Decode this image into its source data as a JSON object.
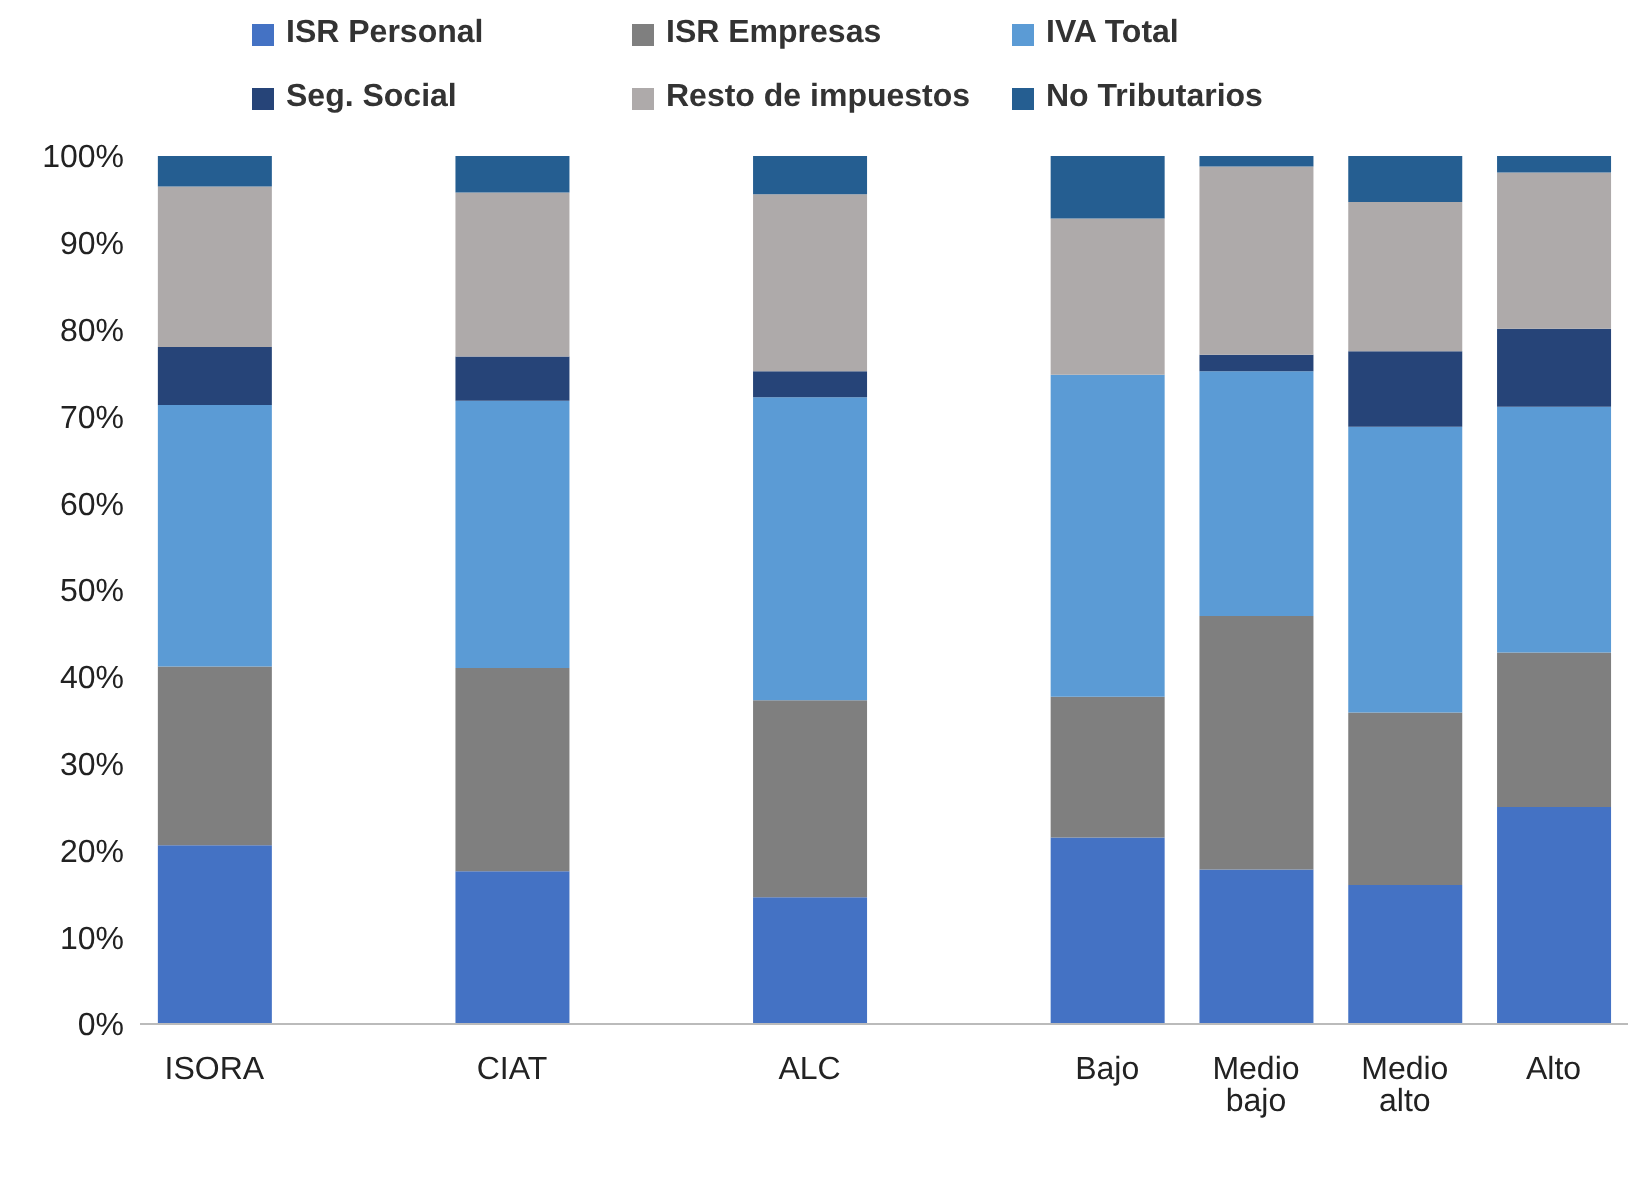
{
  "chart_data": {
    "type": "bar",
    "stacked": true,
    "legend": "top",
    "grid": false,
    "categories": [
      "ISORA",
      null,
      "CIAT",
      null,
      "ALC",
      null,
      "Bajo",
      "Medio bajo",
      "Medio alto",
      "Alto"
    ],
    "ylim": [
      0,
      100
    ],
    "yticks": [
      {
        "value": 0,
        "label": "0%"
      },
      {
        "value": 10,
        "label": "10%"
      },
      {
        "value": 20,
        "label": "20%"
      },
      {
        "value": 30,
        "label": "30%"
      },
      {
        "value": 40,
        "label": "40%"
      },
      {
        "value": 50,
        "label": "50%"
      },
      {
        "value": 60,
        "label": "60%"
      },
      {
        "value": 70,
        "label": "70%"
      },
      {
        "value": 80,
        "label": "80%"
      },
      {
        "value": 90,
        "label": "90%"
      },
      {
        "value": 100,
        "label": "100%"
      }
    ],
    "series": [
      {
        "name": "ISR Personal",
        "color": "#4472c4",
        "values": [
          20.6,
          null,
          17.6,
          null,
          14.6,
          null,
          21.5,
          17.8,
          16.0,
          25.0
        ]
      },
      {
        "name": "ISR Empresas",
        "color": "#7f7f7f",
        "values": [
          20.6,
          null,
          23.4,
          null,
          22.7,
          null,
          16.2,
          29.2,
          19.9,
          17.8
        ]
      },
      {
        "name": "IVA Total",
        "color": "#5b9bd5",
        "values": [
          30.1,
          null,
          30.8,
          null,
          34.9,
          null,
          37.1,
          28.2,
          32.9,
          28.3
        ]
      },
      {
        "name": "Seg. Social",
        "color": "#264478",
        "values": [
          6.7,
          null,
          5.1,
          null,
          3.0,
          null,
          0,
          1.9,
          8.7,
          9.0
        ]
      },
      {
        "name": "Resto de impuestos",
        "color": "#aeaaaa",
        "values": [
          18.5,
          null,
          18.9,
          null,
          20.4,
          null,
          18.0,
          21.7,
          17.2,
          18.0
        ]
      },
      {
        "name": "No Tributarios",
        "color": "#255e91",
        "values": [
          3.5,
          null,
          4.2,
          null,
          4.4,
          null,
          7.2,
          1.2,
          5.3,
          1.9
        ]
      }
    ]
  }
}
